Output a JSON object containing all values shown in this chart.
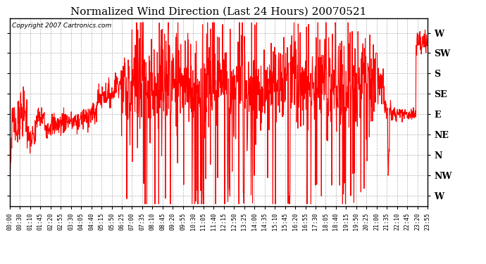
{
  "title": "Normalized Wind Direction (Last 24 Hours) 20070521",
  "copyright_text": "Copyright 2007 Cartronics.com",
  "line_color": "#ff0000",
  "background_color": "#ffffff",
  "grid_color": "#aaaaaa",
  "ytick_labels": [
    "W",
    "NW",
    "N",
    "NE",
    "E",
    "SE",
    "S",
    "SW",
    "W"
  ],
  "ytick_values": [
    0,
    1,
    2,
    3,
    4,
    5,
    6,
    7,
    8
  ],
  "ylim": [
    -0.5,
    8.7
  ],
  "xtick_labels": [
    "00:00",
    "00:30",
    "01:10",
    "01:45",
    "02:20",
    "02:55",
    "03:30",
    "04:05",
    "04:40",
    "05:15",
    "05:50",
    "06:25",
    "07:00",
    "07:35",
    "08:10",
    "08:45",
    "09:20",
    "09:55",
    "10:30",
    "11:05",
    "11:40",
    "12:15",
    "12:50",
    "13:25",
    "14:00",
    "14:35",
    "15:10",
    "15:45",
    "16:20",
    "16:55",
    "17:30",
    "18:05",
    "18:40",
    "19:15",
    "19:50",
    "20:25",
    "21:00",
    "21:35",
    "22:10",
    "22:45",
    "23:20",
    "23:55"
  ],
  "figsize": [
    6.9,
    3.75
  ],
  "dpi": 100
}
